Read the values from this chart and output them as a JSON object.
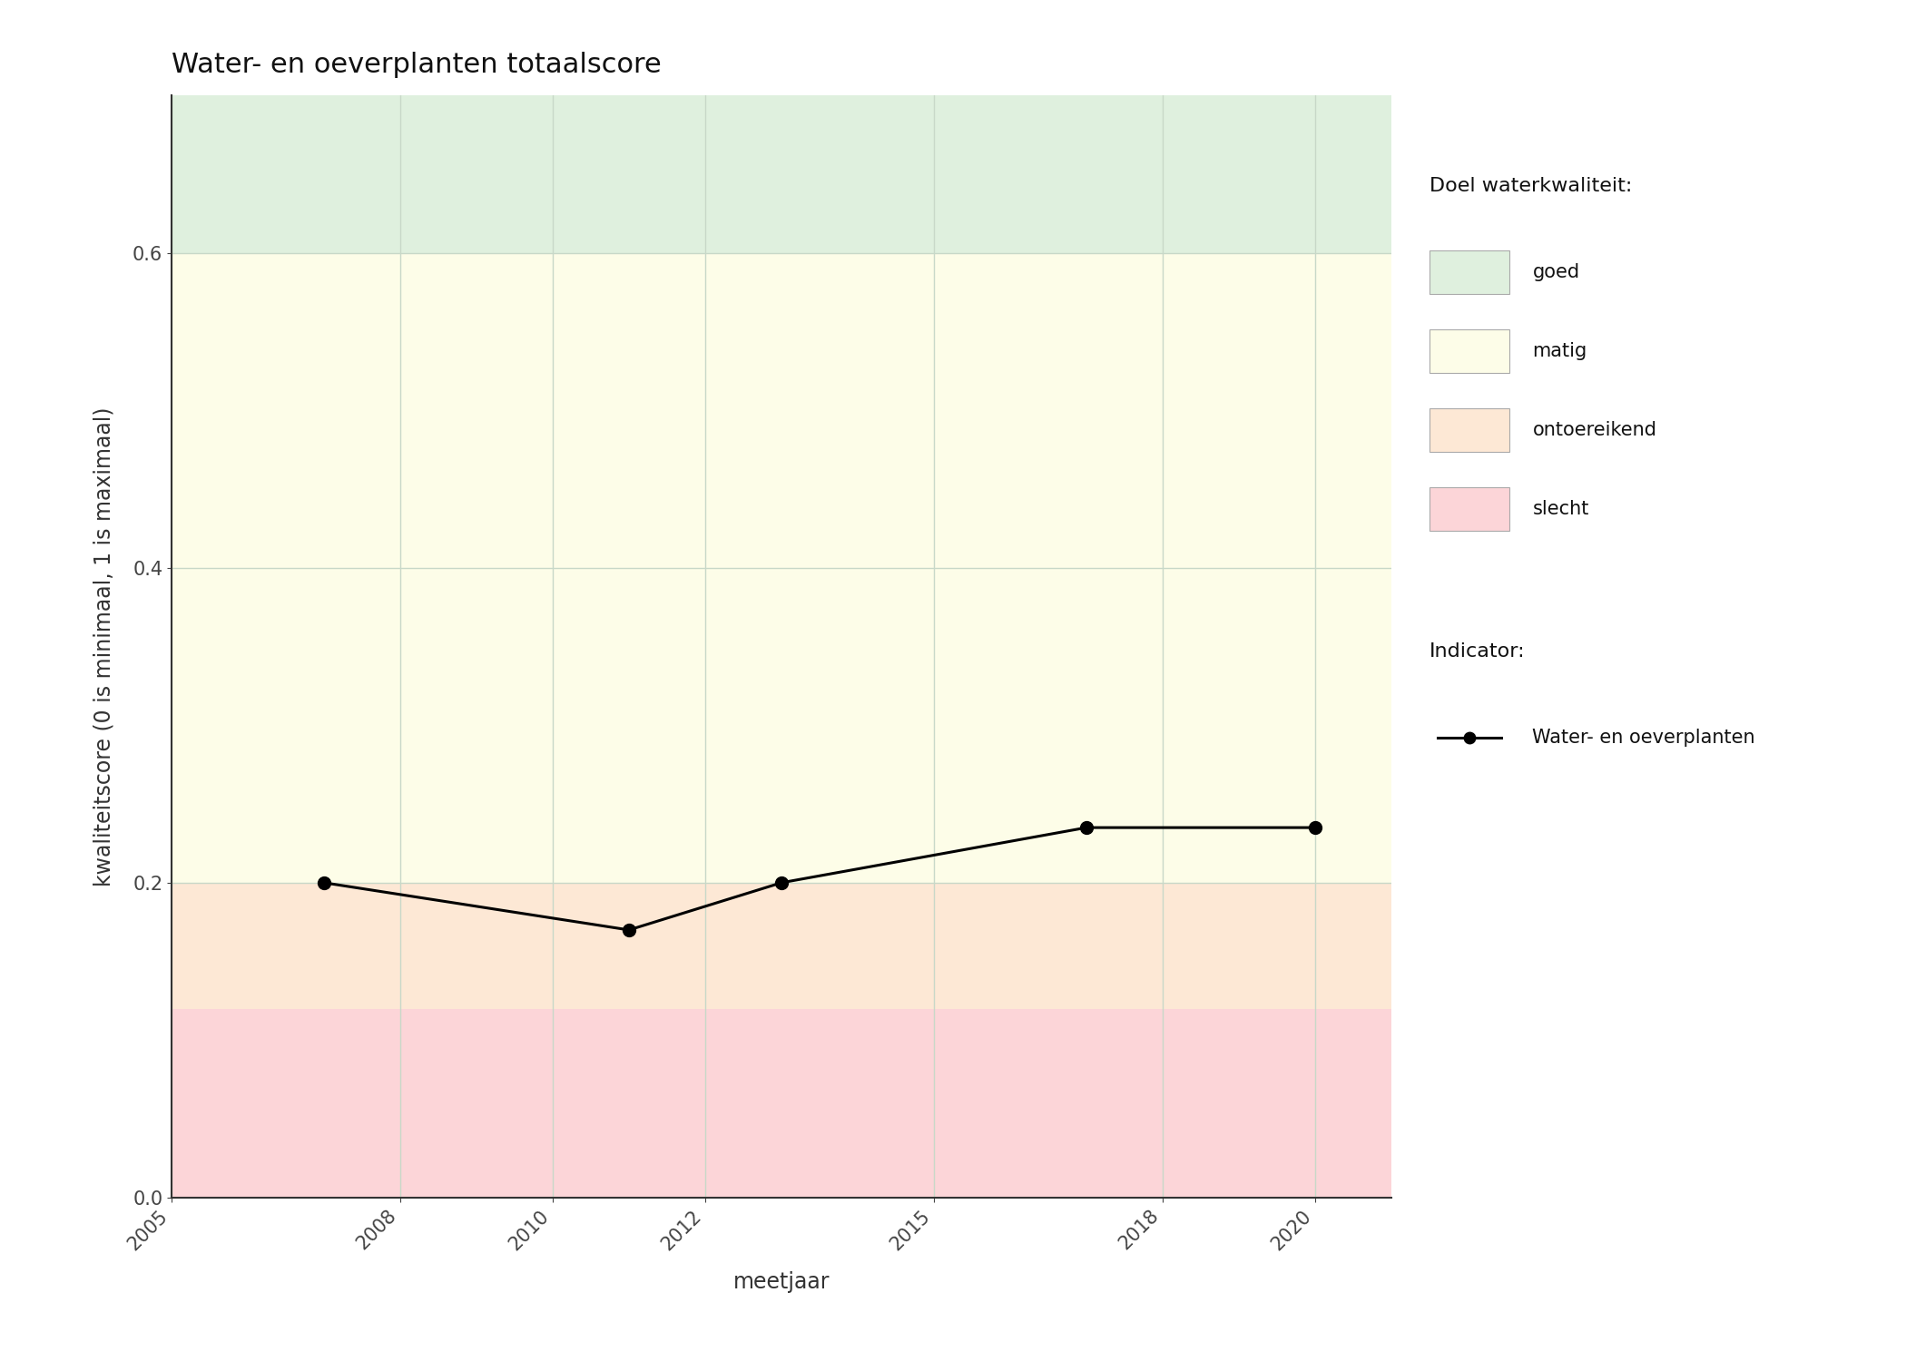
{
  "title": "Water- en oeverplanten totaalscore",
  "xlabel": "meetjaar",
  "ylabel": "kwaliteitscore (0 is minimaal, 1 is maximaal)",
  "xlim": [
    2005,
    2021
  ],
  "ylim": [
    0,
    0.7
  ],
  "yticks": [
    0.0,
    0.2,
    0.4,
    0.6
  ],
  "xticks": [
    2005,
    2008,
    2010,
    2012,
    2015,
    2018,
    2020
  ],
  "years": [
    2007,
    2011,
    2013,
    2017,
    2020
  ],
  "values": [
    0.2,
    0.17,
    0.2,
    0.235,
    0.235
  ],
  "zones": [
    {
      "label": "goed",
      "ymin": 0.6,
      "ymax": 0.7,
      "color": "#dff0de"
    },
    {
      "label": "matig",
      "ymin": 0.2,
      "ymax": 0.6,
      "color": "#fdfde8"
    },
    {
      "label": "ontoereikend",
      "ymin": 0.12,
      "ymax": 0.2,
      "color": "#fde8d5"
    },
    {
      "label": "slecht",
      "ymin": 0.0,
      "ymax": 0.12,
      "color": "#fcd5d8"
    }
  ],
  "legend_title_doel": "Doel waterkwaliteit:",
  "legend_title_indicator": "Indicator:",
  "indicator_label": "Water- en oeverplanten",
  "grid_color": "#c8d8c8",
  "line_color": "#000000",
  "background_color": "#ffffff",
  "title_fontsize": 22,
  "axis_label_fontsize": 17,
  "tick_fontsize": 15,
  "legend_fontsize": 15
}
